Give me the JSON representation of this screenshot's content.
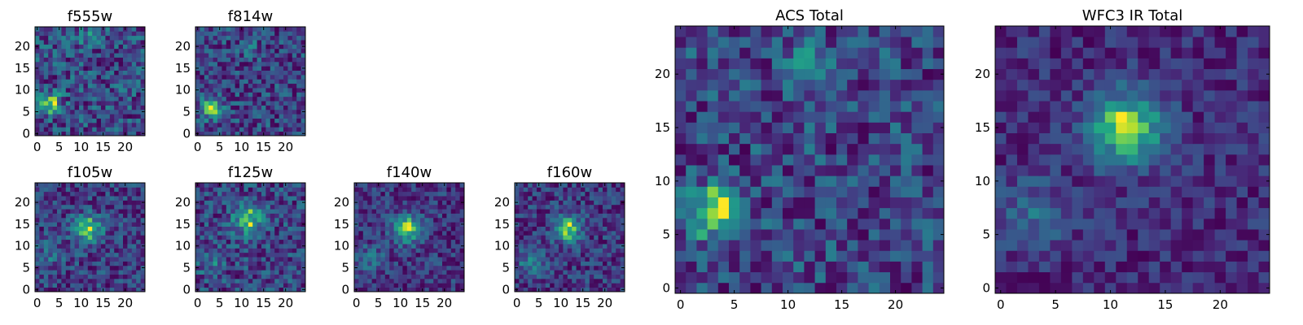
{
  "chart_data": [
    {
      "type": "heatmap",
      "title": "f555w",
      "xticks": [
        0,
        5,
        10,
        15,
        20
      ],
      "yticks": [
        0,
        5,
        10,
        15,
        20
      ],
      "xlim": [
        0,
        24
      ],
      "ylim": [
        0,
        24
      ],
      "grid_size": 25,
      "colormap": "viridis",
      "sources": [
        {
          "x": 3,
          "y": 7,
          "amp": 1.0,
          "spread": 1.6
        },
        {
          "x": 11.5,
          "y": 22,
          "amp": 0.45,
          "spread": 1.3
        }
      ],
      "noise": 0.55,
      "seed": 11
    },
    {
      "type": "heatmap",
      "title": "f814w",
      "xticks": [
        0,
        5,
        10,
        15,
        20
      ],
      "yticks": [
        0,
        5,
        10,
        15,
        20
      ],
      "xlim": [
        0,
        24
      ],
      "ylim": [
        0,
        24
      ],
      "grid_size": 25,
      "colormap": "viridis",
      "sources": [
        {
          "x": 3,
          "y": 6,
          "amp": 0.9,
          "spread": 1.8
        },
        {
          "x": 11.5,
          "y": 20,
          "amp": 0.55,
          "spread": 1.2
        }
      ],
      "noise": 0.5,
      "seed": 23
    },
    {
      "type": "heatmap",
      "title": "f105w",
      "xticks": [
        0,
        5,
        10,
        15,
        20
      ],
      "yticks": [
        0,
        5,
        10,
        15,
        20
      ],
      "xlim": [
        0,
        24
      ],
      "ylim": [
        0,
        24
      ],
      "grid_size": 25,
      "colormap": "viridis",
      "sources": [
        {
          "x": 11.5,
          "y": 14,
          "amp": 0.9,
          "spread": 2.2
        },
        {
          "x": 3,
          "y": 8,
          "amp": 0.3,
          "spread": 2
        }
      ],
      "noise": 0.42,
      "seed": 37
    },
    {
      "type": "heatmap",
      "title": "f125w",
      "xticks": [
        0,
        5,
        10,
        15,
        20
      ],
      "yticks": [
        0,
        5,
        10,
        15,
        20
      ],
      "xlim": [
        0,
        24
      ],
      "ylim": [
        0,
        24
      ],
      "grid_size": 25,
      "colormap": "viridis",
      "sources": [
        {
          "x": 11.5,
          "y": 16,
          "amp": 0.8,
          "spread": 2.4
        },
        {
          "x": 3,
          "y": 6,
          "amp": 0.3,
          "spread": 2
        }
      ],
      "noise": 0.42,
      "seed": 41
    },
    {
      "type": "heatmap",
      "title": "f140w",
      "xticks": [
        0,
        5,
        10,
        15,
        20
      ],
      "yticks": [
        0,
        5,
        10,
        15,
        20
      ],
      "xlim": [
        0,
        24
      ],
      "ylim": [
        0,
        24
      ],
      "grid_size": 25,
      "colormap": "viridis",
      "sources": [
        {
          "x": 11.5,
          "y": 14,
          "amp": 0.85,
          "spread": 2.3
        },
        {
          "x": 3,
          "y": 7,
          "amp": 0.3,
          "spread": 2.2
        }
      ],
      "noise": 0.34,
      "seed": 53
    },
    {
      "type": "heatmap",
      "title": "f160w",
      "xticks": [
        0,
        5,
        10,
        15,
        20
      ],
      "yticks": [
        0,
        5,
        10,
        15,
        20
      ],
      "xlim": [
        0,
        24
      ],
      "ylim": [
        0,
        24
      ],
      "grid_size": 25,
      "colormap": "viridis",
      "sources": [
        {
          "x": 11.5,
          "y": 14,
          "amp": 0.85,
          "spread": 2.1
        },
        {
          "x": 3,
          "y": 6,
          "amp": 0.35,
          "spread": 2
        }
      ],
      "noise": 0.34,
      "seed": 67
    },
    {
      "type": "heatmap",
      "title": "ACS Total",
      "xticks": [
        0,
        5,
        10,
        15,
        20
      ],
      "yticks": [
        0,
        5,
        10,
        15,
        20
      ],
      "xlim": [
        0,
        24
      ],
      "ylim": [
        0,
        24
      ],
      "grid_size": 25,
      "colormap": "viridis",
      "sources": [
        {
          "x": 3,
          "y": 7,
          "amp": 1.0,
          "spread": 1.7
        },
        {
          "x": 11.5,
          "y": 21,
          "amp": 0.55,
          "spread": 1.3
        }
      ],
      "noise": 0.45,
      "seed": 79
    },
    {
      "type": "heatmap",
      "title": "WFC3 IR Total",
      "xticks": [
        0,
        5,
        10,
        15,
        20
      ],
      "yticks": [
        0,
        5,
        10,
        15,
        20
      ],
      "xlim": [
        0,
        24
      ],
      "ylim": [
        0,
        24
      ],
      "grid_size": 25,
      "colormap": "viridis",
      "sources": [
        {
          "x": 11.5,
          "y": 15,
          "amp": 0.95,
          "spread": 2.4
        },
        {
          "x": 3,
          "y": 7,
          "amp": 0.35,
          "spread": 2.2
        }
      ],
      "noise": 0.25,
      "seed": 97
    }
  ]
}
